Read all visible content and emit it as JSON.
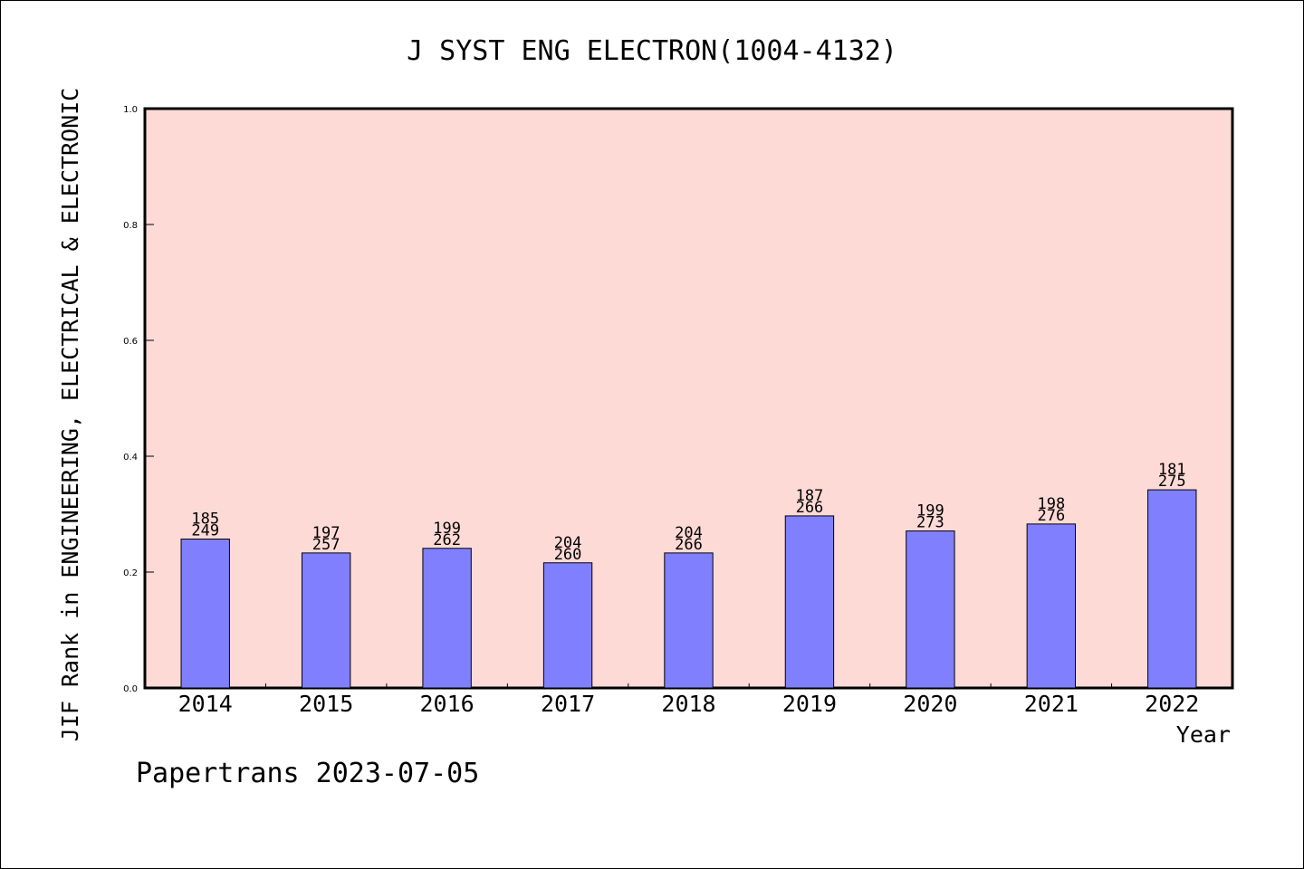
{
  "chart_data": {
    "type": "bar",
    "title": "J SYST ENG ELECTRON(1004-4132)",
    "ylabel": "JIF Rank in ENGINEERING, ELECTRICAL & ELECTRONIC",
    "xlabel": "Year",
    "ylim": [
      0,
      1.0
    ],
    "yticks": [
      "0.0",
      "0.2",
      "0.4",
      "0.6",
      "0.8",
      "1.0"
    ],
    "categories": [
      "2014",
      "2015",
      "2016",
      "2017",
      "2018",
      "2019",
      "2020",
      "2021",
      "2022"
    ],
    "values": [
      0.257,
      0.233,
      0.241,
      0.216,
      0.233,
      0.297,
      0.271,
      0.283,
      0.342
    ],
    "rank": [
      "185",
      "197",
      "199",
      "204",
      "204",
      "187",
      "199",
      "198",
      "181"
    ],
    "total": [
      "249",
      "257",
      "262",
      "260",
      "266",
      "266",
      "273",
      "276",
      "275"
    ],
    "grid": false,
    "colors": {
      "plot_background": "#fddad6",
      "bar_fill": "#8080ff",
      "bar_stroke": "#000000"
    }
  },
  "footer": "Papertrans 2023-07-05"
}
